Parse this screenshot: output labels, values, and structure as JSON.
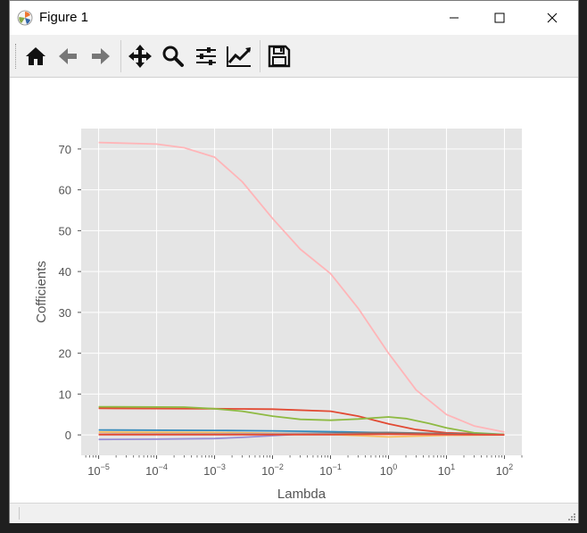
{
  "window": {
    "title": "Figure 1"
  },
  "toolbar": {
    "buttons": [
      {
        "name": "home",
        "icon": "home-icon"
      },
      {
        "name": "back",
        "icon": "arrow-left-icon"
      },
      {
        "name": "forward",
        "icon": "arrow-right-icon"
      },
      {
        "name": "pan",
        "icon": "move-icon"
      },
      {
        "name": "zoom",
        "icon": "magnifier-icon"
      },
      {
        "name": "subplots",
        "icon": "sliders-icon"
      },
      {
        "name": "customize",
        "icon": "line-chart-icon"
      },
      {
        "name": "save",
        "icon": "floppy-disk-icon"
      }
    ]
  },
  "chart_data": {
    "type": "line",
    "title": "",
    "xlabel": "Lambda",
    "ylabel": "Cofficients",
    "xscale": "log",
    "xlim": [
      5e-06,
      200
    ],
    "ylim": [
      -5,
      75
    ],
    "xticks": [
      1e-05,
      0.0001,
      0.001,
      0.01,
      0.1,
      1,
      10,
      100
    ],
    "xtick_labels": [
      {
        "base": "10",
        "exp": "−5"
      },
      {
        "base": "10",
        "exp": "−4"
      },
      {
        "base": "10",
        "exp": "−3"
      },
      {
        "base": "10",
        "exp": "−2"
      },
      {
        "base": "10",
        "exp": "−1"
      },
      {
        "base": "10",
        "exp": "0"
      },
      {
        "base": "10",
        "exp": "1"
      },
      {
        "base": "10",
        "exp": "2"
      }
    ],
    "yticks": [
      0,
      10,
      20,
      30,
      40,
      50,
      60,
      70
    ],
    "ytick_labels": [
      "0",
      "10",
      "20",
      "30",
      "40",
      "50",
      "60",
      "70"
    ],
    "grid": true,
    "background": "#e5e5e5",
    "series": [
      {
        "color": "#ffb5b8",
        "points": [
          [
            1e-05,
            71.6
          ],
          [
            0.0001,
            71.2
          ],
          [
            0.0003,
            70.3
          ],
          [
            0.001,
            68
          ],
          [
            0.003,
            62
          ],
          [
            0.01,
            53
          ],
          [
            0.03,
            45.5
          ],
          [
            0.1,
            39.5
          ],
          [
            0.3,
            31
          ],
          [
            1,
            20
          ],
          [
            3,
            11
          ],
          [
            10,
            5
          ],
          [
            30,
            2.2
          ],
          [
            100,
            0.7
          ]
        ]
      },
      {
        "color": "#e24a33",
        "points": [
          [
            1e-05,
            6.5
          ],
          [
            0.001,
            6.4
          ],
          [
            0.01,
            6.3
          ],
          [
            0.1,
            5.8
          ],
          [
            0.3,
            4.6
          ],
          [
            1,
            2.7
          ],
          [
            3,
            1.3
          ],
          [
            10,
            0.5
          ],
          [
            100,
            0.1
          ]
        ]
      },
      {
        "color": "#8eba42",
        "points": [
          [
            1e-05,
            6.9
          ],
          [
            0.0003,
            6.8
          ],
          [
            0.001,
            6.4
          ],
          [
            0.003,
            5.8
          ],
          [
            0.01,
            4.6
          ],
          [
            0.03,
            3.8
          ],
          [
            0.1,
            3.6
          ],
          [
            0.3,
            3.9
          ],
          [
            1,
            4.4
          ],
          [
            2,
            4.0
          ],
          [
            5,
            2.8
          ],
          [
            10,
            1.7
          ],
          [
            30,
            0.5
          ],
          [
            100,
            0.1
          ]
        ]
      },
      {
        "color": "#348abd",
        "points": [
          [
            1e-05,
            1.2
          ],
          [
            0.001,
            1.1
          ],
          [
            0.01,
            1.0
          ],
          [
            0.1,
            0.8
          ],
          [
            1,
            0.5
          ],
          [
            10,
            0.2
          ],
          [
            100,
            0.05
          ]
        ]
      },
      {
        "color": "#988ed5",
        "points": [
          [
            1e-05,
            -1.1
          ],
          [
            0.0001,
            -1.05
          ],
          [
            0.001,
            -0.9
          ],
          [
            0.003,
            -0.6
          ],
          [
            0.01,
            -0.2
          ],
          [
            0.03,
            0.2
          ],
          [
            0.1,
            0.3
          ],
          [
            1,
            0.2
          ],
          [
            10,
            0.1
          ],
          [
            100,
            0
          ]
        ]
      },
      {
        "color": "#fbc15e",
        "points": [
          [
            1e-05,
            0.7
          ],
          [
            0.001,
            0.6
          ],
          [
            0.01,
            0.4
          ],
          [
            0.1,
            0.1
          ],
          [
            0.5,
            -0.3
          ],
          [
            1,
            -0.5
          ],
          [
            3,
            -0.3
          ],
          [
            10,
            -0.1
          ],
          [
            100,
            0
          ]
        ]
      },
      {
        "color": "#777777",
        "points": [
          [
            1e-05,
            0.3
          ],
          [
            0.01,
            0.3
          ],
          [
            0.1,
            0.4
          ],
          [
            1,
            0.6
          ],
          [
            10,
            0.3
          ],
          [
            100,
            0.05
          ]
        ]
      },
      {
        "color": "#ffb5b8",
        "points": [
          [
            1e-05,
            0.2
          ],
          [
            0.01,
            0.15
          ],
          [
            1,
            0.1
          ],
          [
            100,
            0
          ]
        ]
      },
      {
        "color": "#e24a33",
        "points": [
          [
            1e-05,
            0.05
          ],
          [
            0.1,
            0.05
          ],
          [
            1,
            0.2
          ],
          [
            10,
            0.1
          ],
          [
            100,
            0
          ]
        ]
      }
    ]
  }
}
